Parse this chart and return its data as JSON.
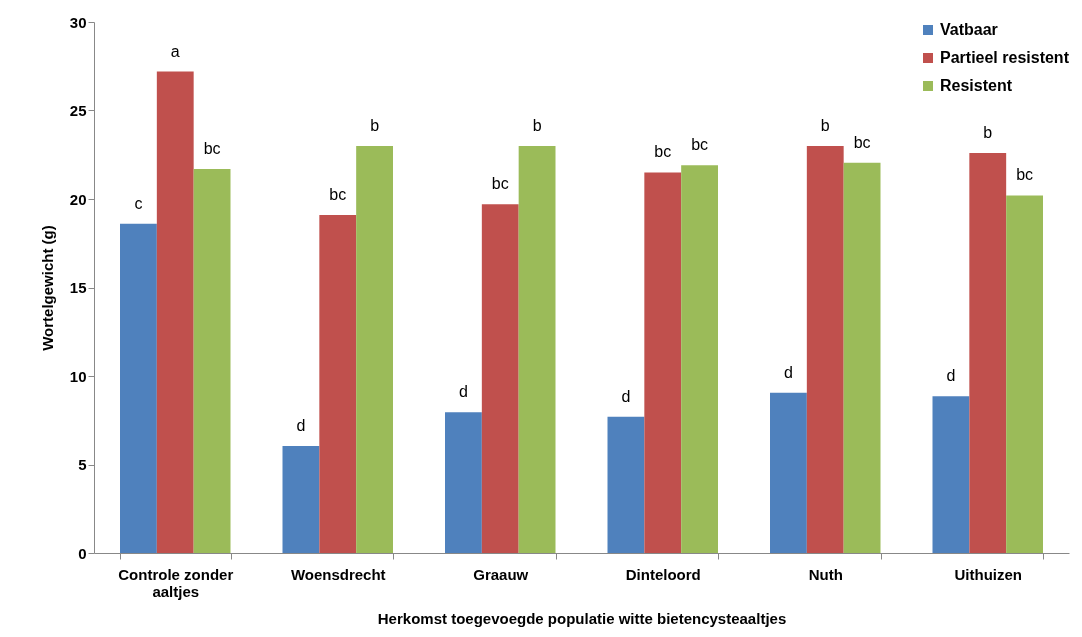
{
  "chart_data": {
    "type": "bar",
    "xlabel": "Herkomst toegevoegde populatie witte bietencysteaaltjes",
    "ylabel": "Wortelgewicht (g)",
    "categories": [
      "Controle zonder aaltjes",
      "Woensdrecht",
      "Graauw",
      "Dinteloord",
      "Nuth",
      "Uithuizen"
    ],
    "series": [
      {
        "name": "Vatbaar",
        "color": "#4f81bd",
        "values": [
          18.6,
          6.05,
          7.95,
          7.7,
          9.05,
          8.85
        ],
        "value_labels": [
          "c",
          "d",
          "d",
          "d",
          "d",
          "d"
        ]
      },
      {
        "name": "Partieel resistent",
        "color": "#c0504d",
        "values": [
          27.2,
          19.1,
          19.7,
          21.5,
          23.0,
          22.6
        ],
        "value_labels": [
          "a",
          "bc",
          "bc",
          "bc",
          "b",
          "b"
        ]
      },
      {
        "name": "Resistent",
        "color": "#9bbb59",
        "values": [
          21.7,
          23.0,
          23.0,
          21.9,
          22.05,
          20.2
        ],
        "value_labels": [
          "bc",
          "b",
          "b",
          "bc",
          "bc",
          "bc"
        ]
      }
    ],
    "ylim": [
      0,
      30
    ],
    "yticks": [
      0,
      5,
      10,
      15,
      20,
      25,
      30
    ],
    "grid": false,
    "legend": "top right"
  }
}
